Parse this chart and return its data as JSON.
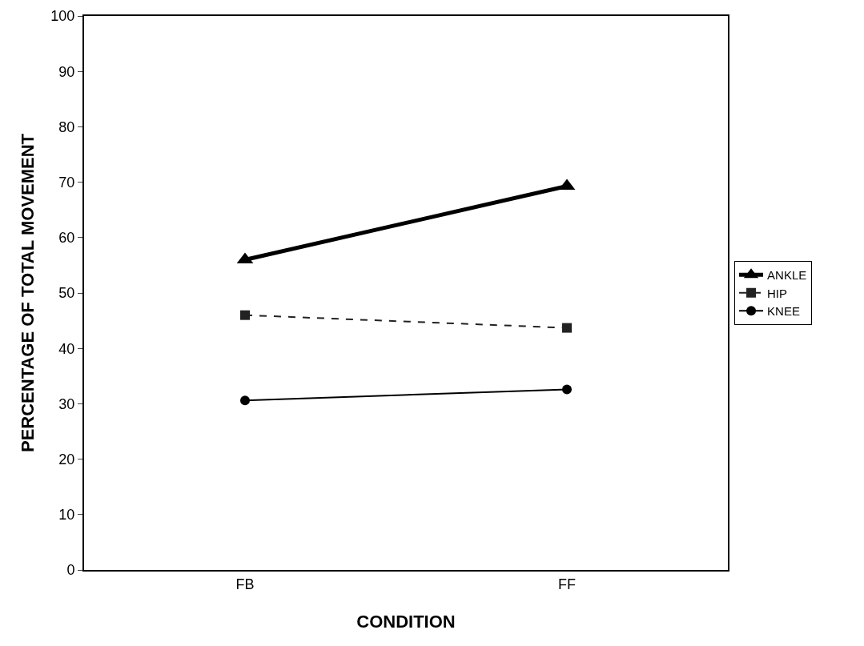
{
  "chart_data": {
    "type": "line",
    "xlabel": "CONDITION",
    "ylabel": "PERCENTAGE OF TOTAL MOVEMENT",
    "categories": [
      "FB",
      "FF"
    ],
    "series": [
      {
        "name": "ANKLE",
        "color": "#000000",
        "values": [
          56,
          69.3
        ],
        "marker": "triangle",
        "line_style": "solid"
      },
      {
        "name": "HIP",
        "color": "#222222",
        "values": [
          46,
          43.7
        ],
        "marker": "square",
        "line_style": "dashed"
      },
      {
        "name": "KNEE",
        "color": "#000000",
        "values": [
          30.6,
          32.6
        ],
        "marker": "circle",
        "line_style": "solid"
      }
    ],
    "ylim": [
      0,
      100
    ],
    "yticks": [
      0,
      10,
      20,
      30,
      40,
      50,
      60,
      70,
      80,
      90,
      100
    ],
    "grid": false,
    "legend": "right"
  }
}
